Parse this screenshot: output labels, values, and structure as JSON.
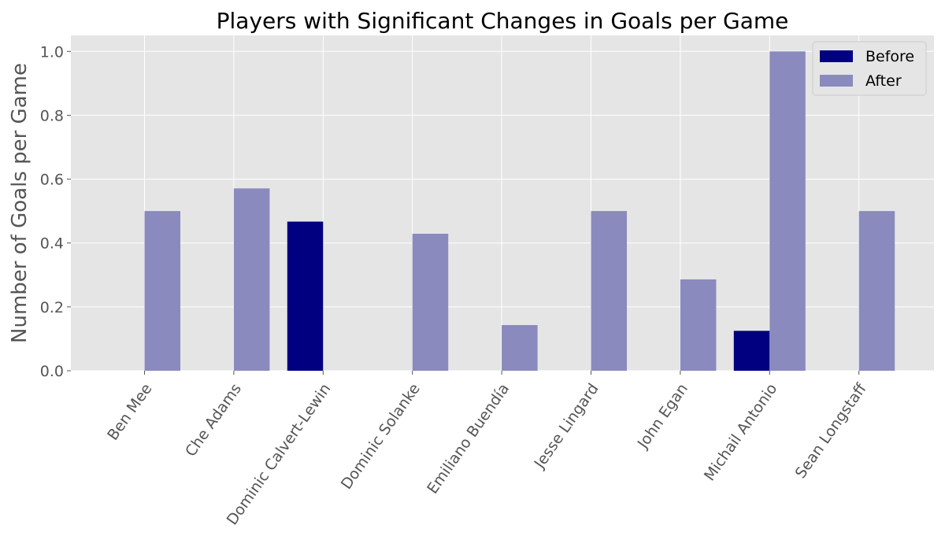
{
  "chart_data": {
    "type": "bar",
    "title": "Players with Significant Changes in Goals per Game",
    "xlabel": "",
    "ylabel": "Number of Goals per Game",
    "categories": [
      "Ben Mee",
      "Che Adams",
      "Dominic Calvert-Lewin",
      "Dominic Solanke",
      "Emiliano Buendía",
      "Jesse Lingard",
      "John Egan",
      "Michail Antonio",
      "Sean Longstaff"
    ],
    "series": [
      {
        "name": "Before",
        "values": [
          0,
          0,
          0.467,
          0,
          0,
          0,
          0,
          0.125,
          0
        ],
        "color": "#000080"
      },
      {
        "name": "After",
        "values": [
          0.5,
          0.571,
          0,
          0.429,
          0.143,
          0.5,
          0.286,
          1.0,
          0.5
        ],
        "color": "#8a8abe"
      }
    ],
    "ylim": [
      0,
      1.05
    ],
    "yticks": [
      0.0,
      0.2,
      0.4,
      0.6,
      0.8,
      1.0
    ],
    "ytick_labels": [
      "0.0",
      "0.2",
      "0.4",
      "0.6",
      "0.8",
      "1.0"
    ],
    "grid": true,
    "legend_position": "top-right",
    "colors": {
      "plot_background": "#e5e5e5",
      "grid": "#ffffff"
    }
  }
}
